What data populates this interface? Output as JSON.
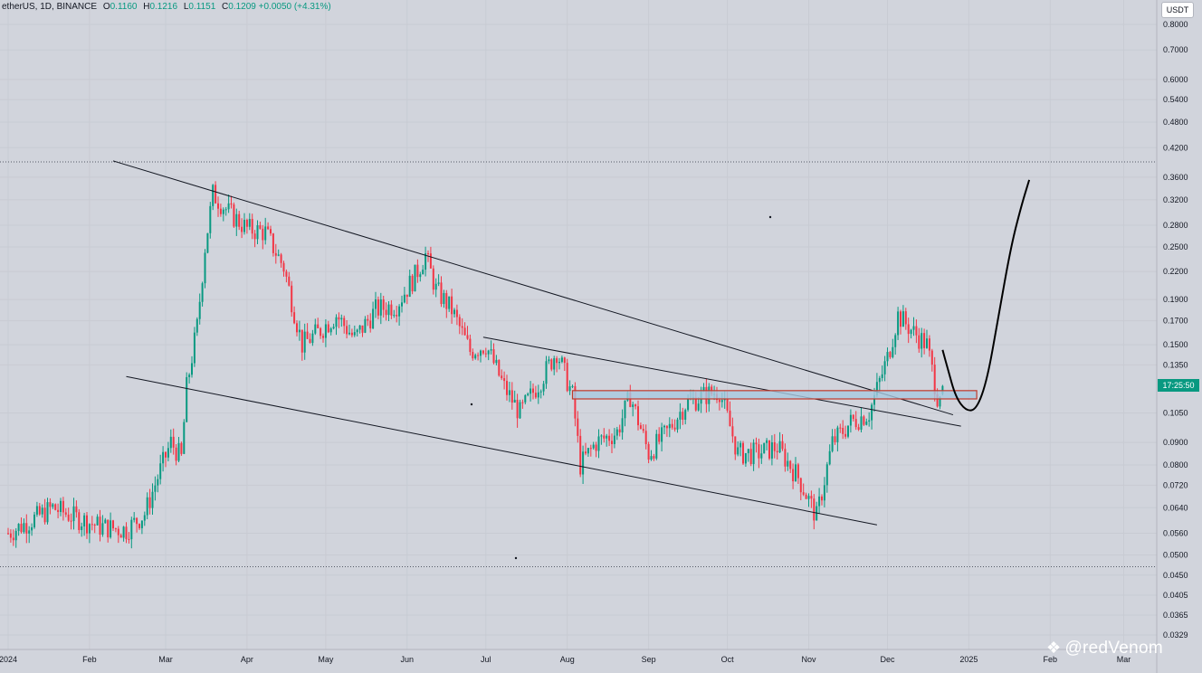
{
  "legend": {
    "symbol": "etherUS, 1D, BINANCE",
    "open_label": "O",
    "open": "0.1160",
    "high_label": "H",
    "high": "0.1216",
    "low_label": "L",
    "low": "0.1151",
    "close_label": "C",
    "close": "0.1209",
    "change": "+0.0050 (+4.31%)"
  },
  "currency": "USDT",
  "price_tag": "17:25:50",
  "watermark": "@redVenom",
  "colors": {
    "background": "#d1d4dc",
    "up": "#089981",
    "down": "#f23645",
    "support_fill": "#a8c8e0",
    "support_border": "#c0392b",
    "trendline": "#131722"
  },
  "chart_data": {
    "type": "candlestick",
    "scale": "log",
    "y_ticks": [
      "0.8000",
      "0.7000",
      "0.6000",
      "0.5400",
      "0.4800",
      "0.4200",
      "0.3600",
      "0.3200",
      "0.2800",
      "0.2500",
      "0.2200",
      "0.1900",
      "0.1700",
      "0.1500",
      "0.1350",
      "0.1050",
      "0.0900",
      "0.0800",
      "0.0720",
      "0.0640",
      "0.0560",
      "0.0500",
      "0.0450",
      "0.0405",
      "0.0365",
      "0.0329"
    ],
    "x_ticks": [
      "2024",
      "Feb",
      "Mar",
      "Apr",
      "May",
      "Jun",
      "Jul",
      "Aug",
      "Sep",
      "Oct",
      "Nov",
      "Dec",
      "2025",
      "Feb",
      "Mar"
    ],
    "x_start": "2024-01-01",
    "ylim": [
      0.0329,
      0.8
    ],
    "last": {
      "open": 0.116,
      "high": 0.1216,
      "low": 0.1151,
      "close": 0.1209
    },
    "closes": [
      {
        "date": "2024-01-01",
        "close": 0.056
      },
      {
        "date": "2024-01-10",
        "close": 0.06
      },
      {
        "date": "2024-01-18",
        "close": 0.064
      },
      {
        "date": "2024-01-26",
        "close": 0.061
      },
      {
        "date": "2024-02-05",
        "close": 0.058
      },
      {
        "date": "2024-02-15",
        "close": 0.057
      },
      {
        "date": "2024-02-22",
        "close": 0.062
      },
      {
        "date": "2024-02-28",
        "close": 0.078
      },
      {
        "date": "2024-03-03",
        "close": 0.09
      },
      {
        "date": "2024-03-07",
        "close": 0.083
      },
      {
        "date": "2024-03-09",
        "close": 0.12
      },
      {
        "date": "2024-03-13",
        "close": 0.165
      },
      {
        "date": "2024-03-16",
        "close": 0.25
      },
      {
        "date": "2024-03-19",
        "close": 0.33
      },
      {
        "date": "2024-03-25",
        "close": 0.3
      },
      {
        "date": "2024-04-01",
        "close": 0.275
      },
      {
        "date": "2024-04-08",
        "close": 0.27
      },
      {
        "date": "2024-04-15",
        "close": 0.225
      },
      {
        "date": "2024-04-22",
        "close": 0.15
      },
      {
        "date": "2024-04-28",
        "close": 0.16
      },
      {
        "date": "2024-05-05",
        "close": 0.175
      },
      {
        "date": "2024-05-12",
        "close": 0.155
      },
      {
        "date": "2024-05-20",
        "close": 0.18
      },
      {
        "date": "2024-05-28",
        "close": 0.185
      },
      {
        "date": "2024-06-04",
        "close": 0.215
      },
      {
        "date": "2024-06-08",
        "close": 0.24
      },
      {
        "date": "2024-06-12",
        "close": 0.2
      },
      {
        "date": "2024-06-18",
        "close": 0.18
      },
      {
        "date": "2024-06-25",
        "close": 0.145
      },
      {
        "date": "2024-07-01",
        "close": 0.15
      },
      {
        "date": "2024-07-08",
        "close": 0.12
      },
      {
        "date": "2024-07-14",
        "close": 0.105
      },
      {
        "date": "2024-07-22",
        "close": 0.125
      },
      {
        "date": "2024-07-28",
        "close": 0.145
      },
      {
        "date": "2024-08-03",
        "close": 0.115
      },
      {
        "date": "2024-08-06",
        "close": 0.08
      },
      {
        "date": "2024-08-12",
        "close": 0.09
      },
      {
        "date": "2024-08-20",
        "close": 0.095
      },
      {
        "date": "2024-08-25",
        "close": 0.115
      },
      {
        "date": "2024-09-01",
        "close": 0.085
      },
      {
        "date": "2024-09-08",
        "close": 0.095
      },
      {
        "date": "2024-09-15",
        "close": 0.11
      },
      {
        "date": "2024-09-22",
        "close": 0.115
      },
      {
        "date": "2024-09-28",
        "close": 0.118
      },
      {
        "date": "2024-10-05",
        "close": 0.085
      },
      {
        "date": "2024-10-12",
        "close": 0.085
      },
      {
        "date": "2024-10-20",
        "close": 0.088
      },
      {
        "date": "2024-10-28",
        "close": 0.075
      },
      {
        "date": "2024-11-04",
        "close": 0.061
      },
      {
        "date": "2024-11-10",
        "close": 0.09
      },
      {
        "date": "2024-11-17",
        "close": 0.1
      },
      {
        "date": "2024-11-24",
        "close": 0.105
      },
      {
        "date": "2024-12-01",
        "close": 0.14
      },
      {
        "date": "2024-12-05",
        "close": 0.175
      },
      {
        "date": "2024-12-11",
        "close": 0.16
      },
      {
        "date": "2024-12-16",
        "close": 0.15
      },
      {
        "date": "2024-12-20",
        "close": 0.115
      },
      {
        "date": "2024-12-22",
        "close": 0.1209
      }
    ],
    "drawings": {
      "upper_trendline": [
        {
          "date": "2024-02-10",
          "price": 0.392
        },
        {
          "date": "2024-12-26",
          "price": 0.104
        }
      ],
      "lower_trendline": [
        {
          "date": "2024-02-15",
          "price": 0.127
        },
        {
          "date": "2024-11-27",
          "price": 0.0585
        }
      ],
      "inner_trendline": [
        {
          "date": "2024-06-30",
          "price": 0.156
        },
        {
          "date": "2024-12-29",
          "price": 0.098
        }
      ],
      "support_zone": {
        "from": "2024-08-03",
        "to": "2025-01-04",
        "top": 0.118,
        "bottom": 0.113
      },
      "projection": [
        {
          "date": "2024-12-22",
          "price": 0.146
        },
        {
          "date": "2024-12-24",
          "price": 0.132
        },
        {
          "date": "2024-12-27",
          "price": 0.114
        },
        {
          "date": "2024-12-31",
          "price": 0.106
        },
        {
          "date": "2025-01-04",
          "price": 0.107
        },
        {
          "date": "2025-01-08",
          "price": 0.125
        },
        {
          "date": "2025-01-12",
          "price": 0.17
        },
        {
          "date": "2025-01-17",
          "price": 0.25
        },
        {
          "date": "2025-01-21",
          "price": 0.31
        },
        {
          "date": "2025-01-24",
          "price": 0.355
        }
      ],
      "horizontal_levels": [
        0.39,
        0.047
      ]
    }
  }
}
